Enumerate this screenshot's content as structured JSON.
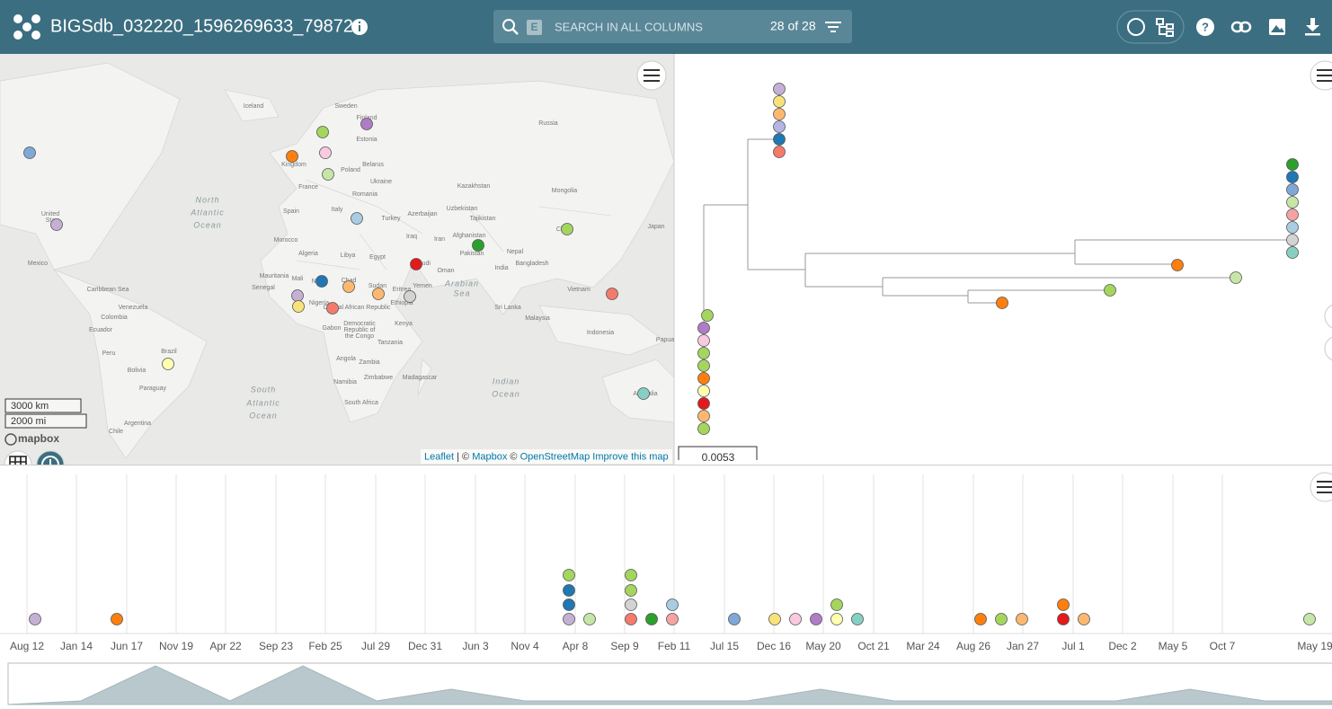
{
  "header": {
    "title": "BIGSdb_032220_1596269633_79872",
    "search_key": "E",
    "search_placeholder": "SEARCH IN ALL COLUMNS",
    "count": "28 of 28"
  },
  "map": {
    "labels": [
      "Iceland",
      "Sweden",
      "Finland",
      "Russia",
      "Estonia",
      "Belarus",
      "Poland",
      "Kingdom",
      "France",
      "Ukraine",
      "Kazakhstan",
      "Mongolia",
      "Romania",
      "Spain",
      "Italy",
      "Turkey",
      "Uzbekistan",
      "Azerbaijan",
      "Tajikistan",
      "Japan",
      "China",
      "North",
      "Atlantic",
      "Ocean",
      "United",
      "Sta",
      "Morocco",
      "Iraq",
      "Iran",
      "Afghanistan",
      "Algeria",
      "Libya",
      "Egypt",
      "Pakistan",
      "Nepal",
      "Mexico",
      "Saudi",
      "India",
      "Bangladesh",
      "Oman",
      "Mauritania",
      "Mali",
      "Niger",
      "Chad",
      "Sudan",
      "Yemen",
      "Arabian",
      "Sea",
      "Senegal",
      "Caribbean Sea",
      "Eritrea",
      "Vietnam",
      "Venezuela",
      "Colombia",
      "Ethiopia",
      "Central African Republic",
      "Nigeria",
      "Sri Lanka",
      "Malaysia",
      "Ecuador",
      "Democratic",
      "Republic of",
      "the Congo",
      "Gabon",
      "Kenya",
      "Indonesia",
      "Papua",
      "Peru",
      "Brazil",
      "Tanzania",
      "Angola",
      "Bolivia",
      "Zambia",
      "Paraguay",
      "Namibia",
      "Madagascar",
      "Zimbabwe",
      "Indian",
      "Ocean",
      "Australia",
      "South",
      "Atlantic",
      "Ocean",
      "South Africa",
      "Argentina",
      "Chile"
    ],
    "scale": [
      "3000 km",
      "2000 mi"
    ],
    "logo": "mapbox",
    "attribution": {
      "leaflet": "Leaflet",
      "sep1": "| ©",
      "mapbox": "Mapbox",
      "sep2": "©",
      "osm": "OpenStreetMap",
      "improve": "Improve this map"
    }
  },
  "tree": {
    "scale_label": "0.0053"
  },
  "timeline": {
    "axis_labels": [
      "Aug 12",
      "Jan 14",
      "Jun 17",
      "Nov 19",
      "Apr 22",
      "Sep 23",
      "Feb 25",
      "Jul 29",
      "Dec 31",
      "Jun 3",
      "Nov 4",
      "Apr 8",
      "Sep 9",
      "Feb 11",
      "Jul 15",
      "Dec 16",
      "May 20",
      "Oct 21",
      "Mar 24",
      "Aug 26",
      "Jan 27",
      "Jul 1",
      "Dec 2",
      "May 5",
      "Oct 7",
      "May 19"
    ]
  }
}
